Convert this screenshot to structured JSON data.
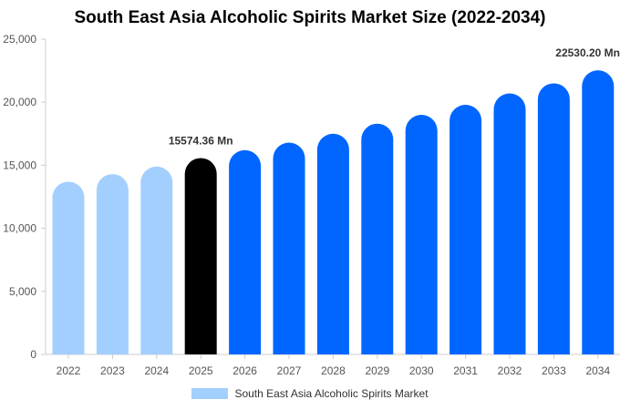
{
  "title": "South East Asia Alcoholic Spirits Market Size (2022-2034)",
  "chart_data": {
    "type": "bar",
    "categories": [
      "2022",
      "2023",
      "2024",
      "2025",
      "2026",
      "2027",
      "2028",
      "2029",
      "2030",
      "2031",
      "2032",
      "2033",
      "2034"
    ],
    "series": [
      {
        "name": "South East Asia Alcoholic Spirits Market",
        "values": [
          13700,
          14300,
          14900,
          15574.36,
          16200,
          16800,
          17500,
          18300,
          19000,
          19800,
          20700,
          21500,
          22530.2
        ]
      }
    ],
    "bar_colors": [
      "#a3cfff",
      "#a3cfff",
      "#a3cfff",
      "#000000",
      "#0066ff",
      "#0066ff",
      "#0066ff",
      "#0066ff",
      "#0066ff",
      "#0066ff",
      "#0066ff",
      "#0066ff",
      "#0066ff"
    ],
    "data_labels": [
      {
        "index": 3,
        "text": "15574.36 Mn"
      },
      {
        "index": 12,
        "text": "22530.20 Mn"
      }
    ],
    "y_ticks": [
      "0",
      "5,000",
      "10,000",
      "15,000",
      "20,000",
      "25,000"
    ],
    "ylim": [
      0,
      25000
    ],
    "xlabel": "",
    "ylabel": "",
    "grid": false,
    "legend_position": "bottom"
  },
  "legend": {
    "label": "South East Asia Alcoholic Spirits Market",
    "color": "#a3cfff"
  }
}
